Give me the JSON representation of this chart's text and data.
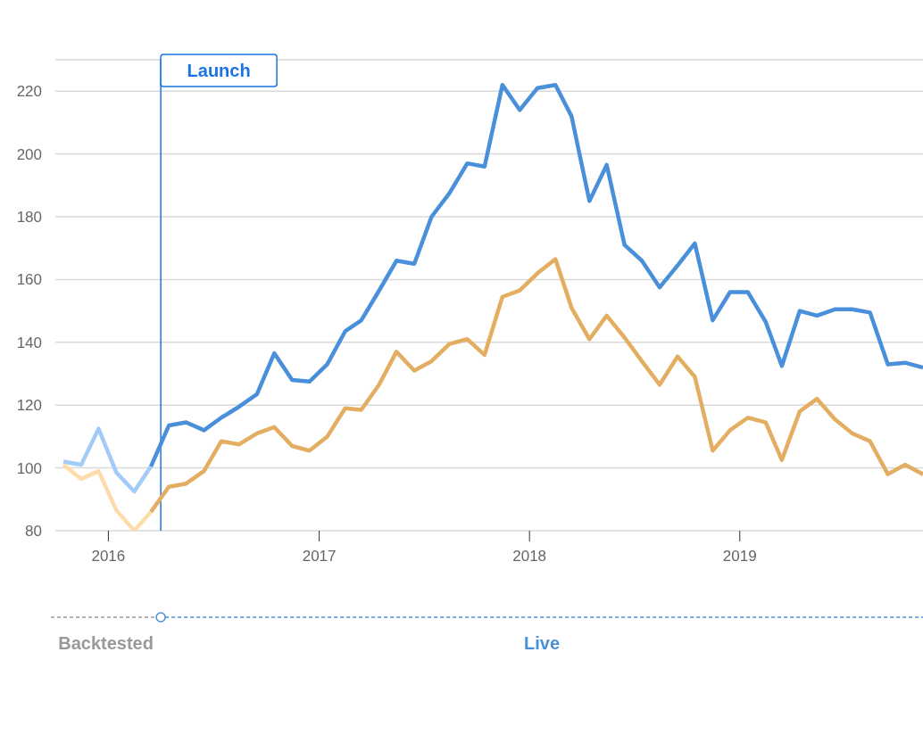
{
  "chart_data": {
    "type": "line",
    "marker": "none",
    "grid": "y",
    "xlim": [
      "2015-10-01",
      "2019-11-15"
    ],
    "xticks": [
      "2016",
      "2017",
      "2018",
      "2019"
    ],
    "ylim": [
      80,
      230
    ],
    "yticks": [
      80,
      100,
      120,
      140,
      160,
      180,
      200,
      220
    ],
    "series": [
      {
        "color": "#a3cbf7",
        "x": [
          "2015-10-15",
          "2015-11-15",
          "2015-12-15",
          "2016-01-15",
          "2016-02-15",
          "2016-03-15"
        ],
        "values": [
          102,
          101,
          112.5,
          98.5,
          92.5,
          100.5
        ]
      },
      {
        "color": "#4a8fd9",
        "x": [
          "2016-03-15",
          "2016-04-15",
          "2016-05-15",
          "2016-06-15",
          "2016-07-15",
          "2016-08-15",
          "2016-09-15",
          "2016-10-15",
          "2016-11-15",
          "2016-12-15",
          "2017-01-15",
          "2017-02-15",
          "2017-03-15",
          "2017-04-15",
          "2017-05-15",
          "2017-06-15",
          "2017-07-15",
          "2017-08-15",
          "2017-09-15",
          "2017-10-15",
          "2017-11-15",
          "2017-12-15",
          "2018-01-15",
          "2018-02-15",
          "2018-03-15",
          "2018-04-15",
          "2018-05-15",
          "2018-06-15",
          "2018-07-15",
          "2018-08-15",
          "2018-09-15",
          "2018-10-15",
          "2018-11-15",
          "2018-12-15",
          "2019-01-15",
          "2019-02-15",
          "2019-03-15",
          "2019-04-15",
          "2019-05-15",
          "2019-06-15",
          "2019-07-15",
          "2019-08-15",
          "2019-09-15",
          "2019-10-15",
          "2019-11-15"
        ],
        "values": [
          100.5,
          113.5,
          114.5,
          112,
          116,
          119.5,
          123.5,
          136.5,
          128,
          127.5,
          133,
          143.5,
          147,
          156.5,
          166,
          165,
          180,
          187.5,
          197,
          196,
          222,
          214,
          221,
          222,
          212,
          185,
          196.5,
          171,
          166,
          157.5,
          164.5,
          171.5,
          147,
          156,
          156,
          146.5,
          132.5,
          150,
          148.5,
          150.5,
          150.5,
          149.5,
          133,
          133.5,
          132
        ]
      },
      {
        "color": "#fddcaa",
        "x": [
          "2015-10-15",
          "2015-11-15",
          "2015-12-15",
          "2016-01-15",
          "2016-02-15",
          "2016-03-15"
        ],
        "values": [
          101,
          96.5,
          99,
          86.5,
          80,
          86
        ]
      },
      {
        "color": "#e3ae62",
        "x": [
          "2016-03-15",
          "2016-04-15",
          "2016-05-15",
          "2016-06-15",
          "2016-07-15",
          "2016-08-15",
          "2016-09-15",
          "2016-10-15",
          "2016-11-15",
          "2016-12-15",
          "2017-01-15",
          "2017-02-15",
          "2017-03-15",
          "2017-04-15",
          "2017-05-15",
          "2017-06-15",
          "2017-07-15",
          "2017-08-15",
          "2017-09-15",
          "2017-10-15",
          "2017-11-15",
          "2017-12-15",
          "2018-01-15",
          "2018-02-15",
          "2018-03-15",
          "2018-04-15",
          "2018-05-15",
          "2018-06-15",
          "2018-07-15",
          "2018-08-15",
          "2018-09-15",
          "2018-10-15",
          "2018-11-15",
          "2018-12-15",
          "2019-01-15",
          "2019-02-15",
          "2019-03-15",
          "2019-04-15",
          "2019-05-15",
          "2019-06-15",
          "2019-07-15",
          "2019-08-15",
          "2019-09-15",
          "2019-10-15",
          "2019-11-15"
        ],
        "values": [
          86,
          94,
          95,
          99,
          108.5,
          107.5,
          111,
          113,
          107,
          105.5,
          110,
          119,
          118.5,
          126.5,
          137,
          131,
          134,
          139.5,
          141,
          136,
          154.5,
          156.5,
          162,
          166.5,
          151,
          141,
          148.5,
          141.5,
          134,
          126.5,
          135.5,
          129,
          105.5,
          112,
          116,
          114.5,
          102.5,
          118,
          122,
          115.5,
          111,
          108.5,
          98,
          101,
          98
        ]
      }
    ],
    "ref_lines": [
      {
        "axis": "x",
        "value": "2016-04-01",
        "label": "Launch",
        "color": "#1a73e8"
      }
    ],
    "annotations": [
      "Backtested",
      "Live"
    ]
  }
}
